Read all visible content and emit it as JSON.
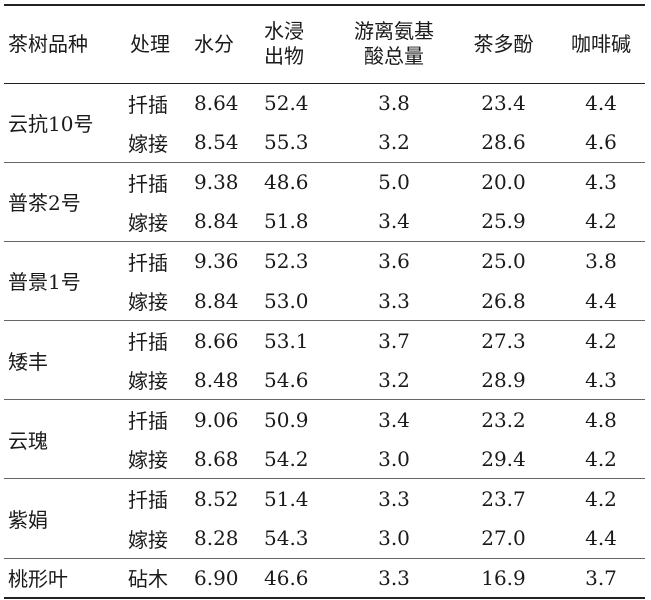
{
  "table": {
    "headers": {
      "variety": "茶树品种",
      "process": "处理",
      "water": "水分",
      "extract_line1": "水浸",
      "extract_line2": "出物",
      "amino_line1": "游离氨基",
      "amino_line2": "酸总量",
      "polyphenol": "茶多酚",
      "caffeine": "咖啡碱"
    },
    "groups": [
      {
        "variety": "云抗10号",
        "rows": [
          {
            "process": "扦插",
            "water": "8.64",
            "extract": "52.4",
            "amino": "3.8",
            "polyphenol": "23.4",
            "caffeine": "4.4"
          },
          {
            "process": "嫁接",
            "water": "8.54",
            "extract": "55.3",
            "amino": "3.2",
            "polyphenol": "28.6",
            "caffeine": "4.6"
          }
        ]
      },
      {
        "variety": "普茶2号",
        "rows": [
          {
            "process": "扦插",
            "water": "9.38",
            "extract": "48.6",
            "amino": "5.0",
            "polyphenol": "20.0",
            "caffeine": "4.3"
          },
          {
            "process": "嫁接",
            "water": "8.84",
            "extract": "51.8",
            "amino": "3.4",
            "polyphenol": "25.9",
            "caffeine": "4.2"
          }
        ]
      },
      {
        "variety": "普景1号",
        "rows": [
          {
            "process": "扦插",
            "water": "9.36",
            "extract": "52.3",
            "amino": "3.6",
            "polyphenol": "25.0",
            "caffeine": "3.8"
          },
          {
            "process": "嫁接",
            "water": "8.84",
            "extract": "53.0",
            "amino": "3.3",
            "polyphenol": "26.8",
            "caffeine": "4.4"
          }
        ]
      },
      {
        "variety": "矮丰",
        "rows": [
          {
            "process": "扦插",
            "water": "8.66",
            "extract": "53.1",
            "amino": "3.7",
            "polyphenol": "27.3",
            "caffeine": "4.2"
          },
          {
            "process": "嫁接",
            "water": "8.48",
            "extract": "54.6",
            "amino": "3.2",
            "polyphenol": "28.9",
            "caffeine": "4.3"
          }
        ]
      },
      {
        "variety": "云瑰",
        "rows": [
          {
            "process": "扦插",
            "water": "9.06",
            "extract": "50.9",
            "amino": "3.4",
            "polyphenol": "23.2",
            "caffeine": "4.8"
          },
          {
            "process": "嫁接",
            "water": "8.68",
            "extract": "54.2",
            "amino": "3.0",
            "polyphenol": "29.4",
            "caffeine": "4.2"
          }
        ]
      },
      {
        "variety": "紫娟",
        "rows": [
          {
            "process": "扦插",
            "water": "8.52",
            "extract": "51.4",
            "amino": "3.3",
            "polyphenol": "23.7",
            "caffeine": "4.2"
          },
          {
            "process": "嫁接",
            "water": "8.28",
            "extract": "54.3",
            "amino": "3.0",
            "polyphenol": "27.0",
            "caffeine": "4.4"
          }
        ]
      },
      {
        "variety": "桃形叶",
        "rows": [
          {
            "process": "砧木",
            "water": "6.90",
            "extract": "46.6",
            "amino": "3.3",
            "polyphenol": "16.9",
            "caffeine": "3.7"
          }
        ]
      }
    ]
  }
}
